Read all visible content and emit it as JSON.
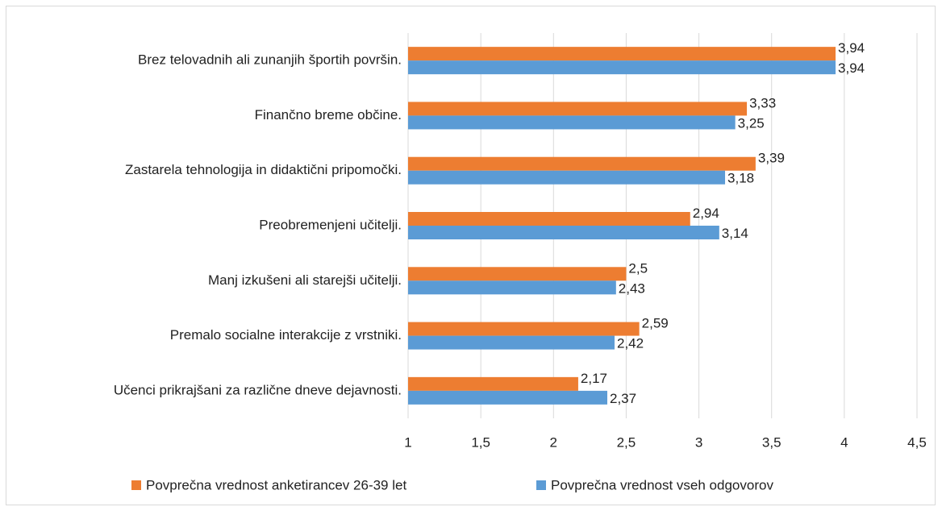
{
  "chart_data": {
    "type": "hbar",
    "categories": [
      "Brez telovadnih ali zunanjih športih površin.",
      "Finančno breme občine.",
      "Zastarela tehnologija in didaktični pripomočki.",
      "Preobremenjeni učitelji.",
      "Manj izkušeni ali starejši učitelji.",
      "Premalo socialne interakcije z vrstniki.",
      "Učenci prikrajšani za različne dneve dejavnosti."
    ],
    "series": [
      {
        "name": "Povprečna vrednost anketirancev 26-39 let",
        "color": "#ED7D31",
        "values": [
          3.94,
          3.33,
          3.39,
          2.94,
          2.5,
          2.59,
          2.17
        ],
        "value_labels": [
          "3,94",
          "3,33",
          "3,39",
          "2,94",
          "2,5",
          "2,59",
          "2,17"
        ]
      },
      {
        "name": "Povprečna vrednost vseh odgovorov",
        "color": "#5B9BD5",
        "values": [
          3.94,
          3.25,
          3.18,
          3.14,
          2.43,
          2.42,
          2.37
        ],
        "value_labels": [
          "3,94",
          "3,25",
          "3,18",
          "3,14",
          "2,43",
          "2,42",
          "2,37"
        ]
      }
    ],
    "xlim": [
      1,
      4.5
    ],
    "xticks": [
      1,
      {
        "value": 1.5,
        "label": "1,5"
      },
      2,
      {
        "value": 2.5,
        "label": "2,5"
      },
      3,
      {
        "value": 3.5,
        "label": "3,5"
      },
      4,
      {
        "value": 4.5,
        "label": "4,5"
      }
    ],
    "grid": true,
    "legend": "bottom"
  }
}
